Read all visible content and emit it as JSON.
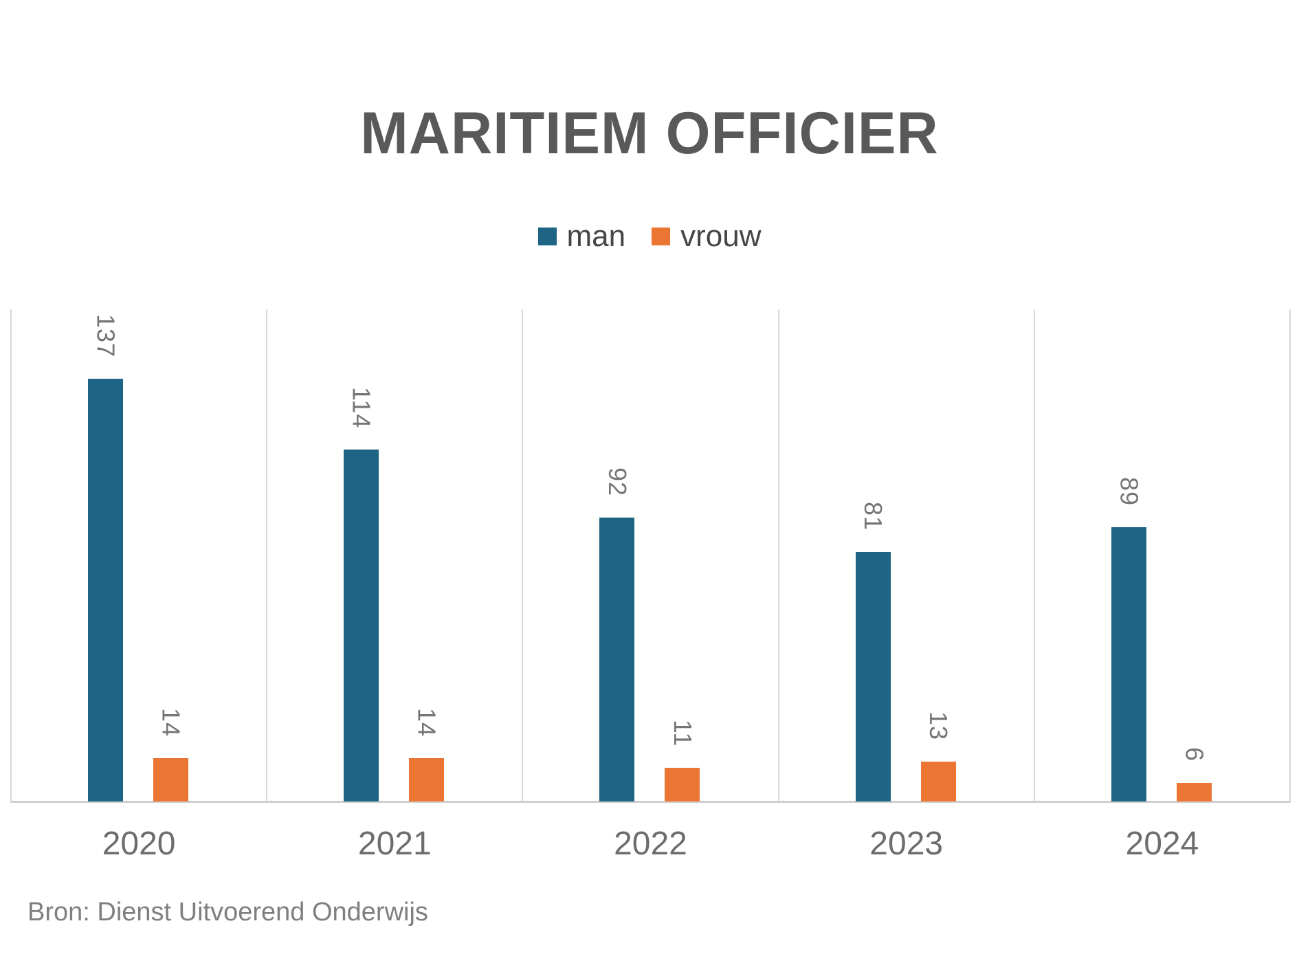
{
  "source_note": "Bron: Dienst Uitvoerend Onderwijs",
  "chart_data": {
    "type": "bar",
    "title": "MARITIEM OFFICIER",
    "categories": [
      "2020",
      "2021",
      "2022",
      "2023",
      "2024"
    ],
    "series": [
      {
        "name": "man",
        "color": "#1e6484",
        "values": [
          137,
          114,
          92,
          81,
          89
        ]
      },
      {
        "name": "vrouw",
        "color": "#eb7532",
        "values": [
          14,
          14,
          11,
          13,
          6
        ]
      }
    ],
    "xlabel": "",
    "ylabel": "",
    "ylim": [
      0,
      160
    ],
    "grid": "vertical-category-separators",
    "legend_position": "top",
    "data_labels": "rotated-90-clockwise",
    "title_color": "#595959",
    "grid_color": "#d9d9d9",
    "axis_color": "#cfcfcf",
    "data_label_color": "#757575",
    "tick_label_color": "#6d6d6d"
  }
}
